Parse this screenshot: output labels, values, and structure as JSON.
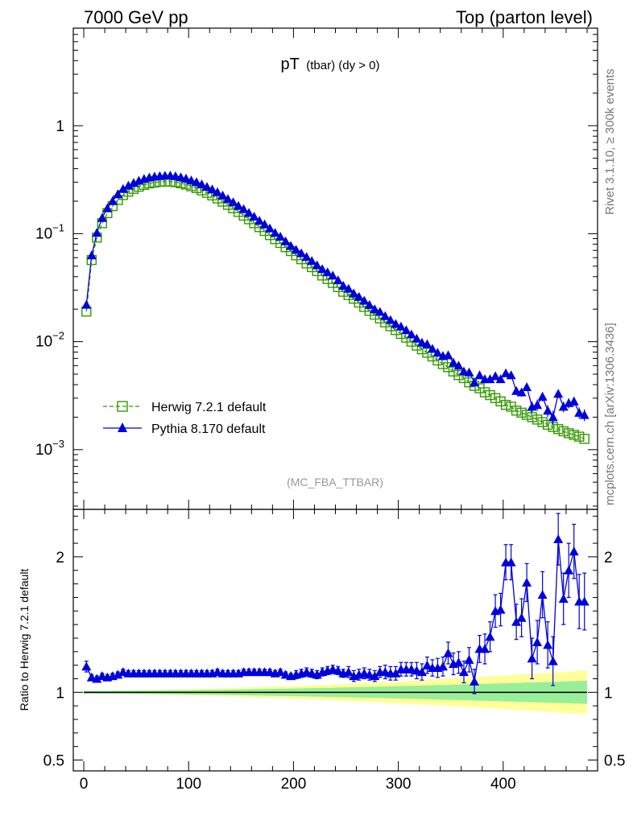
{
  "header": {
    "left_label": "7000 GeV pp",
    "right_label": "Top (parton level)"
  },
  "side_labels": {
    "rivet": "Rivet 3.1.10, ≥ 300k events",
    "source": "mcplots.cern.ch [arXiv:1306.3436]"
  },
  "chart_data": [
    {
      "type": "line",
      "title": "pT",
      "title_sub": "(tbar) (dy > 0)",
      "watermark": "(MC_FBA_TTBAR)",
      "yscale": "log",
      "xlim": [
        -10,
        490
      ],
      "ylim": [
        0.00028,
        8
      ],
      "y_ticks": [
        {
          "value": 0.001,
          "base": "10",
          "exp": "−3"
        },
        {
          "value": 0.01,
          "base": "10",
          "exp": "−2"
        },
        {
          "value": 0.1,
          "base": "10",
          "exp": "−1"
        },
        {
          "value": 1,
          "base": "1",
          "exp": ""
        }
      ],
      "legend_position": "lower-left",
      "x": [
        2.5,
        7.5,
        12.5,
        17.5,
        22.5,
        27.5,
        32.5,
        37.5,
        42.5,
        47.5,
        52.5,
        57.5,
        62.5,
        67.5,
        72.5,
        77.5,
        82.5,
        87.5,
        92.5,
        97.5,
        102.5,
        107.5,
        112.5,
        117.5,
        122.5,
        127.5,
        132.5,
        137.5,
        142.5,
        147.5,
        152.5,
        157.5,
        162.5,
        167.5,
        172.5,
        177.5,
        182.5,
        187.5,
        192.5,
        197.5,
        202.5,
        207.5,
        212.5,
        217.5,
        222.5,
        227.5,
        232.5,
        237.5,
        242.5,
        247.5,
        252.5,
        257.5,
        262.5,
        267.5,
        272.5,
        277.5,
        282.5,
        287.5,
        292.5,
        297.5,
        302.5,
        307.5,
        312.5,
        317.5,
        322.5,
        327.5,
        332.5,
        337.5,
        342.5,
        347.5,
        352.5,
        357.5,
        362.5,
        367.5,
        372.5,
        377.5,
        382.5,
        387.5,
        392.5,
        397.5,
        402.5,
        407.5,
        412.5,
        417.5,
        422.5,
        427.5,
        432.5,
        437.5,
        442.5,
        447.5,
        452.5,
        457.5,
        462.5,
        467.5,
        472.5,
        477.5
      ],
      "series": [
        {
          "name": "Herwig 7.2.1 default",
          "color": "#339900",
          "marker": "open-square",
          "line": "dashed",
          "values": [
            0.019,
            0.057,
            0.092,
            0.125,
            0.155,
            0.18,
            0.205,
            0.228,
            0.245,
            0.26,
            0.272,
            0.283,
            0.292,
            0.298,
            0.302,
            0.304,
            0.304,
            0.3,
            0.293,
            0.285,
            0.275,
            0.264,
            0.252,
            0.239,
            0.226,
            0.212,
            0.198,
            0.185,
            0.172,
            0.159,
            0.147,
            0.136,
            0.125,
            0.115,
            0.106,
            0.097,
            0.089,
            0.082,
            0.075,
            0.069,
            0.063,
            0.058,
            0.053,
            0.049,
            0.045,
            0.041,
            0.038,
            0.035,
            0.032,
            0.029,
            0.027,
            0.025,
            0.023,
            0.021,
            0.0193,
            0.0178,
            0.0164,
            0.0151,
            0.0139,
            0.0128,
            0.0118,
            0.0109,
            0.01,
            0.0092,
            0.0085,
            0.0079,
            0.0073,
            0.0067,
            0.0062,
            0.0058,
            0.0053,
            0.0049,
            0.0046,
            0.0042,
            0.0039,
            0.0037,
            0.0034,
            0.0032,
            0.003,
            0.0028,
            0.0026,
            0.0025,
            0.0023,
            0.0022,
            0.0021,
            0.002,
            0.0019,
            0.0018,
            0.0017,
            0.00162,
            0.00155,
            0.00148,
            0.00142,
            0.00137,
            0.00132,
            0.00126
          ]
        },
        {
          "name": "Pythia 8.170 default",
          "color": "#0000dd",
          "marker": "filled-triangle",
          "line": "solid",
          "values": [
            0.022,
            0.063,
            0.102,
            0.14,
            0.172,
            0.201,
            0.232,
            0.26,
            0.279,
            0.295,
            0.31,
            0.322,
            0.332,
            0.338,
            0.342,
            0.345,
            0.346,
            0.341,
            0.333,
            0.324,
            0.312,
            0.301,
            0.287,
            0.272,
            0.258,
            0.243,
            0.226,
            0.21,
            0.196,
            0.181,
            0.169,
            0.156,
            0.144,
            0.132,
            0.122,
            0.112,
            0.102,
            0.094,
            0.085,
            0.077,
            0.071,
            0.066,
            0.061,
            0.056,
            0.051,
            0.047,
            0.044,
            0.041,
            0.037,
            0.033,
            0.031,
            0.028,
            0.026,
            0.024,
            0.0219,
            0.02,
            0.0189,
            0.0173,
            0.0159,
            0.0146,
            0.0138,
            0.0128,
            0.0117,
            0.0107,
            0.0098,
            0.0095,
            0.0086,
            0.0079,
            0.0074,
            0.0075,
            0.0064,
            0.006,
            0.0053,
            0.0052,
            0.0042,
            0.0049,
            0.0045,
            0.0045,
            0.0048,
            0.0045,
            0.0051,
            0.0049,
            0.0035,
            0.0034,
            0.0038,
            0.0025,
            0.0026,
            0.0031,
            0.0023,
            0.002,
            0.0033,
            0.0025,
            0.0027,
            0.0028,
            0.0022,
            0.0021
          ]
        }
      ]
    },
    {
      "type": "line",
      "ylabel": "Ratio to Herwig 7.2.1 default",
      "xlim": [
        -10,
        490
      ],
      "ylim": [
        0.42,
        2.35
      ],
      "x_ticks": [
        0,
        100,
        200,
        300,
        400
      ],
      "y_ticks": [
        0.5,
        1,
        2
      ],
      "reference_line": 1,
      "ratio_values": [
        1.19,
        1.11,
        1.1,
        1.12,
        1.11,
        1.12,
        1.13,
        1.15,
        1.14,
        1.14,
        1.14,
        1.14,
        1.14,
        1.14,
        1.14,
        1.14,
        1.14,
        1.14,
        1.14,
        1.14,
        1.14,
        1.14,
        1.14,
        1.14,
        1.14,
        1.15,
        1.14,
        1.14,
        1.14,
        1.14,
        1.15,
        1.15,
        1.15,
        1.15,
        1.15,
        1.15,
        1.14,
        1.15,
        1.13,
        1.12,
        1.13,
        1.14,
        1.15,
        1.14,
        1.13,
        1.15,
        1.16,
        1.17,
        1.16,
        1.14,
        1.15,
        1.12,
        1.13,
        1.14,
        1.13,
        1.12,
        1.15,
        1.15,
        1.14,
        1.14,
        1.17,
        1.17,
        1.17,
        1.16,
        1.15,
        1.2,
        1.18,
        1.18,
        1.19,
        1.29,
        1.21,
        1.22,
        1.15,
        1.24,
        1.08,
        1.32,
        1.32,
        1.41,
        1.6,
        1.61,
        1.96,
        1.96,
        1.52,
        1.55,
        1.81,
        1.25,
        1.37,
        1.72,
        1.35,
        1.23,
        2.13,
        1.69,
        1.9,
        2.04,
        1.67,
        1.67
      ],
      "ratio_errors": [
        0.04,
        0.02,
        0.02,
        0.02,
        0.02,
        0.02,
        0.02,
        0.02,
        0.02,
        0.02,
        0.02,
        0.02,
        0.02,
        0.02,
        0.02,
        0.02,
        0.02,
        0.02,
        0.02,
        0.02,
        0.02,
        0.02,
        0.02,
        0.02,
        0.02,
        0.02,
        0.02,
        0.02,
        0.02,
        0.02,
        0.02,
        0.02,
        0.02,
        0.02,
        0.02,
        0.02,
        0.02,
        0.02,
        0.02,
        0.02,
        0.03,
        0.03,
        0.03,
        0.03,
        0.03,
        0.03,
        0.03,
        0.03,
        0.03,
        0.03,
        0.04,
        0.04,
        0.04,
        0.04,
        0.04,
        0.04,
        0.04,
        0.05,
        0.05,
        0.05,
        0.05,
        0.05,
        0.05,
        0.06,
        0.06,
        0.06,
        0.06,
        0.07,
        0.07,
        0.08,
        0.08,
        0.08,
        0.08,
        0.09,
        0.09,
        0.1,
        0.11,
        0.11,
        0.12,
        0.12,
        0.13,
        0.13,
        0.13,
        0.14,
        0.14,
        0.15,
        0.16,
        0.17,
        0.17,
        0.18,
        0.19,
        0.19,
        0.2,
        0.2,
        0.2,
        0.21
      ]
    }
  ]
}
